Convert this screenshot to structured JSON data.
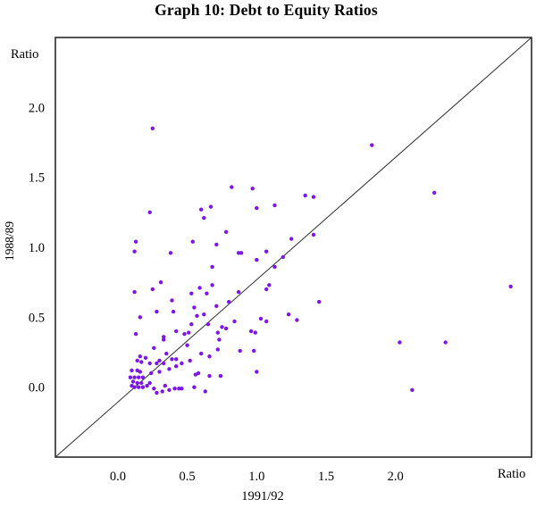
{
  "chart_data": {
    "type": "scatter",
    "title": "Graph 10: Debt to Equity Ratios",
    "xlabel": "1991/92",
    "ylabel": "1988/89",
    "x_unit_label": "Ratio",
    "y_unit_label": "Ratio",
    "x_ticks": [
      0.0,
      0.5,
      1.0,
      1.5,
      2.0
    ],
    "y_ticks": [
      0.0,
      0.5,
      1.0,
      1.5,
      2.0
    ],
    "xlim": [
      -0.45,
      2.98
    ],
    "ylim": [
      -0.5,
      2.5
    ],
    "grid": false,
    "legend": false,
    "marker_color": "#7d17e3",
    "frame_color": "#2a2a2a",
    "reference_line": {
      "from": [
        -0.45,
        -0.5
      ],
      "to": [
        2.98,
        2.5
      ]
    },
    "points": [
      [
        0.25,
        1.85
      ],
      [
        0.82,
        1.43
      ],
      [
        0.97,
        1.42
      ],
      [
        1.35,
        1.37
      ],
      [
        1.41,
        1.36
      ],
      [
        1.83,
        1.73
      ],
      [
        2.28,
        1.39
      ],
      [
        0.23,
        1.25
      ],
      [
        0.6,
        1.27
      ],
      [
        0.67,
        1.29
      ],
      [
        0.62,
        1.21
      ],
      [
        0.78,
        1.11
      ],
      [
        0.13,
        1.04
      ],
      [
        0.54,
        1.04
      ],
      [
        0.71,
        1.02
      ],
      [
        0.12,
        0.97
      ],
      [
        0.38,
        0.96
      ],
      [
        0.68,
        0.86
      ],
      [
        0.31,
        0.75
      ],
      [
        0.25,
        0.7
      ],
      [
        0.68,
        0.73
      ],
      [
        0.59,
        0.71
      ],
      [
        0.12,
        0.68
      ],
      [
        0.53,
        0.67
      ],
      [
        0.64,
        0.67
      ],
      [
        0.39,
        0.62
      ],
      [
        0.8,
        0.61
      ],
      [
        1.0,
        1.28
      ],
      [
        1.13,
        1.3
      ],
      [
        1.41,
        1.09
      ],
      [
        1.25,
        1.06
      ],
      [
        0.87,
        0.96
      ],
      [
        0.89,
        0.96
      ],
      [
        1.07,
        0.97
      ],
      [
        1.19,
        0.93
      ],
      [
        1.0,
        0.91
      ],
      [
        1.13,
        0.86
      ],
      [
        1.09,
        0.73
      ],
      [
        1.07,
        0.7
      ],
      [
        0.87,
        0.68
      ],
      [
        1.45,
        0.61
      ],
      [
        0.55,
        0.57
      ],
      [
        0.71,
        0.58
      ],
      [
        0.28,
        0.54
      ],
      [
        0.4,
        0.54
      ],
      [
        0.16,
        0.5
      ],
      [
        0.57,
        0.51
      ],
      [
        0.62,
        0.52
      ],
      [
        0.53,
        0.45
      ],
      [
        0.65,
        0.45
      ],
      [
        0.42,
        0.4
      ],
      [
        0.75,
        0.43
      ],
      [
        0.78,
        0.42
      ],
      [
        0.13,
        0.38
      ],
      [
        0.48,
        0.38
      ],
      [
        0.51,
        0.39
      ],
      [
        0.72,
        0.39
      ],
      [
        0.33,
        0.36
      ],
      [
        0.33,
        0.34
      ],
      [
        0.73,
        0.34
      ],
      [
        0.5,
        0.3
      ],
      [
        0.72,
        0.27
      ],
      [
        0.6,
        0.24
      ],
      [
        0.66,
        0.22
      ],
      [
        0.52,
        0.19
      ],
      [
        0.58,
        0.1
      ],
      [
        0.56,
        0.09
      ],
      [
        0.66,
        0.08
      ],
      [
        0.74,
        0.08
      ],
      [
        0.63,
        -0.03
      ],
      [
        0.55,
        0.0
      ],
      [
        0.44,
        -0.01
      ],
      [
        0.26,
        0.28
      ],
      [
        0.35,
        0.24
      ],
      [
        0.16,
        0.22
      ],
      [
        0.2,
        0.21
      ],
      [
        0.14,
        0.19
      ],
      [
        0.17,
        0.18
      ],
      [
        0.23,
        0.17
      ],
      [
        0.28,
        0.17
      ],
      [
        0.3,
        0.19
      ],
      [
        0.33,
        0.17
      ],
      [
        0.39,
        0.2
      ],
      [
        0.42,
        0.2
      ],
      [
        0.46,
        0.17
      ],
      [
        0.42,
        0.15
      ],
      [
        0.37,
        0.13
      ],
      [
        0.1,
        0.12
      ],
      [
        0.14,
        0.12
      ],
      [
        0.16,
        0.11
      ],
      [
        0.24,
        0.1
      ],
      [
        0.3,
        0.11
      ],
      [
        0.09,
        0.07
      ],
      [
        0.12,
        0.07
      ],
      [
        0.15,
        0.07
      ],
      [
        0.18,
        0.07
      ],
      [
        0.11,
        0.04
      ],
      [
        0.14,
        0.03
      ],
      [
        0.17,
        0.03
      ],
      [
        0.23,
        0.03
      ],
      [
        0.1,
        0.01
      ],
      [
        0.12,
        0.0
      ],
      [
        0.15,
        0.0
      ],
      [
        0.18,
        0.0
      ],
      [
        0.21,
        0.01
      ],
      [
        0.26,
        -0.01
      ],
      [
        0.34,
        0.01
      ],
      [
        0.37,
        -0.02
      ],
      [
        0.41,
        -0.01
      ],
      [
        0.46,
        -0.01
      ],
      [
        0.28,
        -0.04
      ],
      [
        0.32,
        -0.03
      ],
      [
        0.84,
        0.47
      ],
      [
        1.03,
        0.49
      ],
      [
        1.07,
        0.47
      ],
      [
        1.23,
        0.52
      ],
      [
        1.29,
        0.48
      ],
      [
        0.96,
        0.4
      ],
      [
        0.99,
        0.39
      ],
      [
        0.88,
        0.26
      ],
      [
        0.98,
        0.26
      ],
      [
        1.0,
        0.11
      ],
      [
        2.83,
        0.72
      ],
      [
        2.03,
        0.32
      ],
      [
        2.36,
        0.32
      ],
      [
        2.12,
        -0.02
      ]
    ]
  }
}
